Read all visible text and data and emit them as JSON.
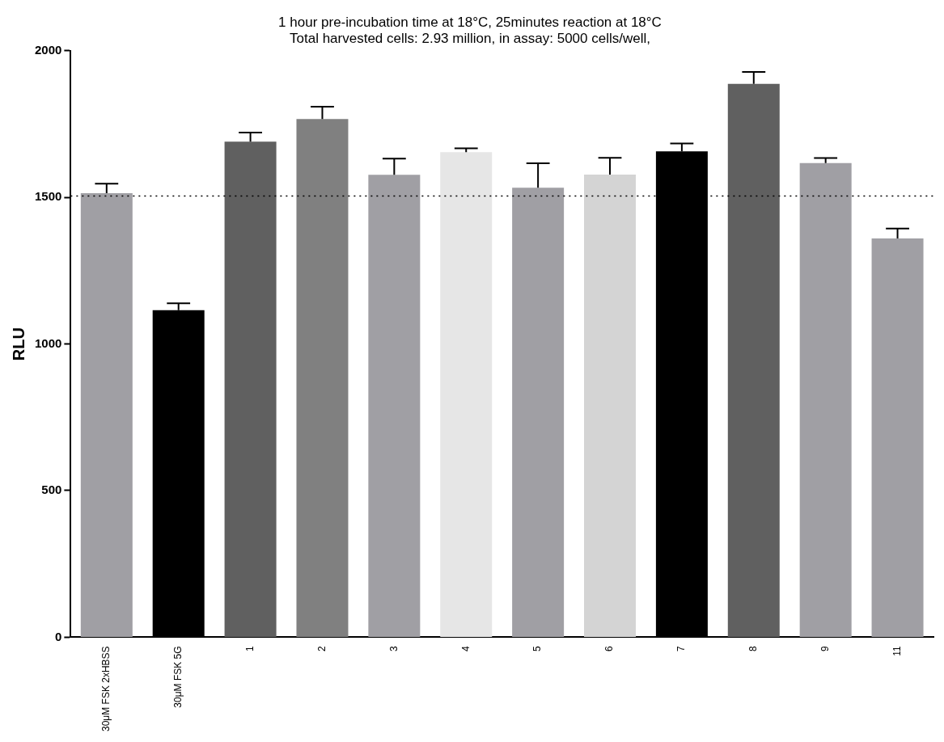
{
  "chart_data": {
    "type": "bar",
    "title": [
      "1 hour pre-incubation time at 18°C, 25minutes reaction at 18°C",
      "Total harvested cells: 2.93 million, in assay: 5000 cells/well,"
    ],
    "ylabel": "RLU",
    "categories": [
      "30μM FSK 2xHBSS",
      "30μM FSK 5G",
      "1",
      "2",
      "3",
      "4",
      "5",
      "6",
      "7",
      "8",
      "9",
      "11"
    ],
    "values": [
      1514,
      1115,
      1690,
      1767,
      1577,
      1654,
      1533,
      1578,
      1657,
      1887,
      1617,
      1360
    ],
    "colors": [
      "#a09fa4",
      "#000000",
      "#606060",
      "#808080",
      "#a09fa4",
      "#e6e6e6",
      "#a09fa4",
      "#d4d4d4",
      "#000000",
      "#606060",
      "#a09fa4",
      "#a09fa4"
    ],
    "errors": [
      [
        1514,
        1547
      ],
      [
        1115,
        1139
      ],
      [
        1690,
        1721
      ],
      [
        1767,
        1809
      ],
      [
        1577,
        1632
      ],
      [
        1654,
        1667
      ],
      [
        1533,
        1616
      ],
      [
        1578,
        1635
      ],
      [
        1657,
        1684
      ],
      [
        1887,
        1928
      ],
      [
        1617,
        1634
      ],
      [
        1360,
        1394
      ]
    ],
    "ylim": [
      0,
      2000
    ],
    "yticks": [
      0,
      500,
      1000,
      1500,
      2000
    ],
    "ref_lines": [
      {
        "axis": "y",
        "value": 1505,
        "line_style": "dotted",
        "color": "#000000"
      }
    ],
    "grid": false,
    "legend": false
  }
}
